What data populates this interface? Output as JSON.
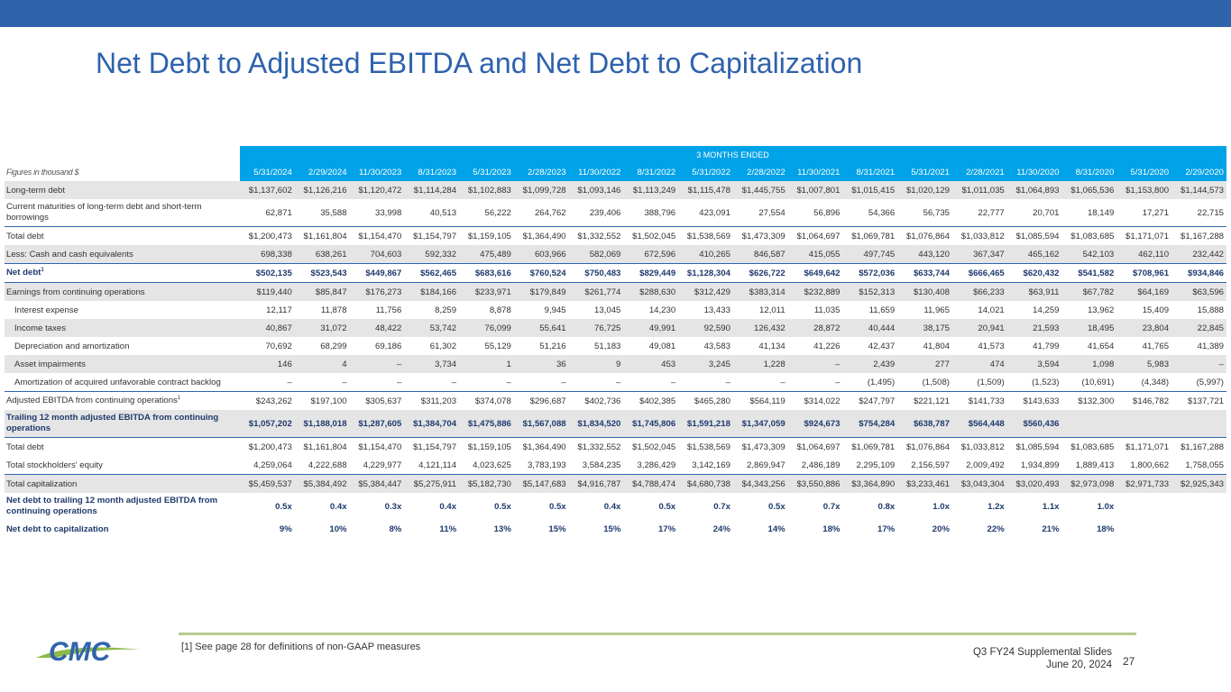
{
  "title": "Net Debt to Adjusted EBITDA and Net Debt to Capitalization",
  "table": {
    "period_label": "3 MONTHS ENDED",
    "figures_label": "Figures in thousand $",
    "columns": [
      "5/31/2024",
      "2/29/2024",
      "11/30/2023",
      "8/31/2023",
      "5/31/2023",
      "2/28/2023",
      "11/30/2022",
      "8/31/2022",
      "5/31/2022",
      "2/28/2022",
      "11/30/2021",
      "8/31/2021",
      "5/31/2021",
      "2/28/2021",
      "11/30/2020",
      "8/31/2020",
      "5/31/2020",
      "2/29/2020"
    ],
    "rows": [
      {
        "label": "Long-term debt",
        "values": [
          "$1,137,602",
          "$1,126,216",
          "$1,120,472",
          "$1,114,284",
          "$1,102,883",
          "$1,099,728",
          "$1,093,146",
          "$1,113,249",
          "$1,115,478",
          "$1,445,755",
          "$1,007,801",
          "$1,015,415",
          "$1,020,129",
          "$1,011,035",
          "$1,064,893",
          "$1,065,536",
          "$1,153,800",
          "$1,144,573"
        ]
      },
      {
        "label": "Current maturities of long-term debt and short-term borrowings",
        "values": [
          "62,871",
          "35,588",
          "33,998",
          "40,513",
          "56,222",
          "264,762",
          "239,406",
          "388,796",
          "423,091",
          "27,554",
          "56,896",
          "54,366",
          "56,735",
          "22,777",
          "20,701",
          "18,149",
          "17,271",
          "22,715"
        ]
      },
      {
        "label": "Total debt",
        "values": [
          "$1,200,473",
          "$1,161,804",
          "$1,154,470",
          "$1,154,797",
          "$1,159,105",
          "$1,364,490",
          "$1,332,552",
          "$1,502,045",
          "$1,538,569",
          "$1,473,309",
          "$1,064,697",
          "$1,069,781",
          "$1,076,864",
          "$1,033,812",
          "$1,085,594",
          "$1,083,685",
          "$1,171,071",
          "$1,167,288"
        ]
      },
      {
        "label": "Less: Cash and cash equivalents",
        "values": [
          "698,338",
          "638,261",
          "704,603",
          "592,332",
          "475,489",
          "603,966",
          "582,069",
          "672,596",
          "410,265",
          "846,587",
          "415,055",
          "497,745",
          "443,120",
          "367,347",
          "465,162",
          "542,103",
          "462,110",
          "232,442"
        ]
      },
      {
        "label": "Net debt",
        "sup": "1",
        "values": [
          "$502,135",
          "$523,543",
          "$449,867",
          "$562,465",
          "$683,616",
          "$760,524",
          "$750,483",
          "$829,449",
          "$1,128,304",
          "$626,722",
          "$649,642",
          "$572,036",
          "$633,744",
          "$666,465",
          "$620,432",
          "$541,582",
          "$708,961",
          "$934,846"
        ]
      },
      {
        "label": "Earnings from continuing operations",
        "values": [
          "$119,440",
          "$85,847",
          "$176,273",
          "$184,166",
          "$233,971",
          "$179,849",
          "$261,774",
          "$288,630",
          "$312,429",
          "$383,314",
          "$232,889",
          "$152,313",
          "$130,408",
          "$66,233",
          "$63,911",
          "$67,782",
          "$64,169",
          "$63,596"
        ]
      },
      {
        "label": "Interest expense",
        "values": [
          "12,117",
          "11,878",
          "11,756",
          "8,259",
          "8,878",
          "9,945",
          "13,045",
          "14,230",
          "13,433",
          "12,011",
          "11,035",
          "11,659",
          "11,965",
          "14,021",
          "14,259",
          "13,962",
          "15,409",
          "15,888"
        ]
      },
      {
        "label": "Income taxes",
        "values": [
          "40,867",
          "31,072",
          "48,422",
          "53,742",
          "76,099",
          "55,641",
          "76,725",
          "49,991",
          "92,590",
          "126,432",
          "28,872",
          "40,444",
          "38,175",
          "20,941",
          "21,593",
          "18,495",
          "23,804",
          "22,845"
        ]
      },
      {
        "label": "Depreciation and amortization",
        "values": [
          "70,692",
          "68,299",
          "69,186",
          "61,302",
          "55,129",
          "51,216",
          "51,183",
          "49,081",
          "43,583",
          "41,134",
          "41,226",
          "42,437",
          "41,804",
          "41,573",
          "41,799",
          "41,654",
          "41,765",
          "41,389"
        ]
      },
      {
        "label": "Asset impairments",
        "values": [
          "146",
          "4",
          "–",
          "3,734",
          "1",
          "36",
          "9",
          "453",
          "3,245",
          "1,228",
          "–",
          "2,439",
          "277",
          "474",
          "3,594",
          "1,098",
          "5,983",
          "–"
        ]
      },
      {
        "label": "Amortization of acquired unfavorable contract backlog",
        "values": [
          "–",
          "–",
          "–",
          "–",
          "–",
          "–",
          "–",
          "–",
          "–",
          "–",
          "–",
          "(1,495)",
          "(1,508)",
          "(1,509)",
          "(1,523)",
          "(10,691)",
          "(4,348)",
          "(5,997)"
        ]
      },
      {
        "label": "Adjusted EBITDA from continuing operations",
        "sup": "1",
        "values": [
          "$243,262",
          "$197,100",
          "$305,637",
          "$311,203",
          "$374,078",
          "$296,687",
          "$402,736",
          "$402,385",
          "$465,280",
          "$564,119",
          "$314,022",
          "$247,797",
          "$221,121",
          "$141,733",
          "$143,633",
          "$132,300",
          "$146,782",
          "$137,721"
        ]
      },
      {
        "label": "Trailing 12 month adjusted EBITDA from continuing operations",
        "values": [
          "$1,057,202",
          "$1,188,018",
          "$1,287,605",
          "$1,384,704",
          "$1,475,886",
          "$1,567,088",
          "$1,834,520",
          "$1,745,806",
          "$1,591,218",
          "$1,347,059",
          "$924,673",
          "$754,284",
          "$638,787",
          "$564,448",
          "$560,436",
          "",
          "",
          ""
        ]
      },
      {
        "label": "Total debt",
        "values": [
          "$1,200,473",
          "$1,161,804",
          "$1,154,470",
          "$1,154,797",
          "$1,159,105",
          "$1,364,490",
          "$1,332,552",
          "$1,502,045",
          "$1,538,569",
          "$1,473,309",
          "$1,064,697",
          "$1,069,781",
          "$1,076,864",
          "$1,033,812",
          "$1,085,594",
          "$1,083,685",
          "$1,171,071",
          "$1,167,288"
        ]
      },
      {
        "label": "Total stockholders' equity",
        "values": [
          "4,259,064",
          "4,222,688",
          "4,229,977",
          "4,121,114",
          "4,023,625",
          "3,783,193",
          "3,584,235",
          "3,286,429",
          "3,142,169",
          "2,869,947",
          "2,486,189",
          "2,295,109",
          "2,156,597",
          "2,009,492",
          "1,934,899",
          "1,889,413",
          "1,800,662",
          "1,758,055"
        ]
      },
      {
        "label": "Total capitalization",
        "values": [
          "$5,459,537",
          "$5,384,492",
          "$5,384,447",
          "$5,275,911",
          "$5,182,730",
          "$5,147,683",
          "$4,916,787",
          "$4,788,474",
          "$4,680,738",
          "$4,343,256",
          "$3,550,886",
          "$3,364,890",
          "$3,233,461",
          "$3,043,304",
          "$3,020,493",
          "$2,973,098",
          "$2,971,733",
          "$2,925,343"
        ]
      },
      {
        "label": "Net debt to trailing 12 month adjusted EBITDA from continuing operations",
        "values": [
          "0.5x",
          "0.4x",
          "0.3x",
          "0.4x",
          "0.5x",
          "0.5x",
          "0.4x",
          "0.5x",
          "0.7x",
          "0.5x",
          "0.7x",
          "0.8x",
          "1.0x",
          "1.2x",
          "1.1x",
          "1.0x",
          "",
          ""
        ]
      },
      {
        "label": "Net debt to capitalization",
        "values": [
          "9%",
          "10%",
          "8%",
          "11%",
          "13%",
          "15%",
          "15%",
          "17%",
          "24%",
          "14%",
          "18%",
          "17%",
          "20%",
          "22%",
          "21%",
          "18%",
          "",
          ""
        ]
      }
    ]
  },
  "footnote": "[1] See page 28 for definitions of non-GAAP measures",
  "footer": {
    "deck_title": "Q3 FY24 Supplemental Slides",
    "date": "June 20, 2024",
    "page_number": "27"
  },
  "logo": {
    "text": "CMC",
    "color": "#2f64ad",
    "swoosh_color": "#8db84a"
  }
}
